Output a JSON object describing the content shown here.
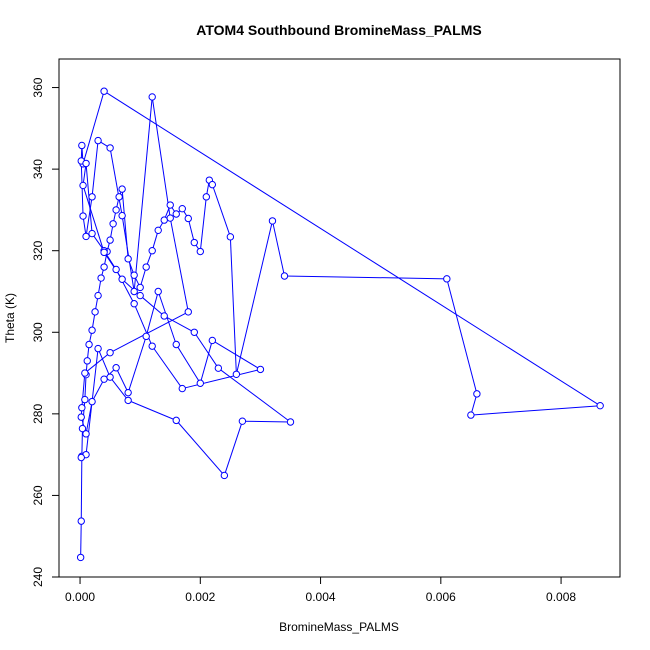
{
  "chart_data": {
    "type": "line",
    "title": "ATOM4 Southbound BromineMass_PALMS",
    "xlabel": "BromineMass_PALMS",
    "ylabel": "Theta (K)",
    "xlim": [
      -0.00035,
      0.00898
    ],
    "ylim": [
      240,
      367
    ],
    "x_ticks": [
      0.0,
      0.002,
      0.004,
      0.006,
      0.008
    ],
    "x_tick_labels": [
      "0.000",
      "0.002",
      "0.004",
      "0.006",
      "0.008"
    ],
    "y_ticks": [
      240,
      260,
      280,
      300,
      320,
      340,
      360
    ],
    "y_tick_labels": [
      "240",
      "260",
      "280",
      "300",
      "320",
      "340",
      "360"
    ],
    "grid": false,
    "marker": "open-circle",
    "series_color": "#0000ff",
    "series": [
      {
        "x": [
          1e-05,
          2e-05,
          3e-05,
          4e-05,
          8e-05,
          0.0001,
          0.00012,
          0.00015,
          0.0002,
          0.00025,
          0.0003,
          0.00035,
          0.0004,
          0.00045,
          0.0005,
          0.00055,
          0.0006,
          0.00065,
          0.0007,
          0.0008,
          0.0009,
          0.001,
          0.0011,
          0.0012,
          0.0013,
          0.0014,
          0.0015,
          0.0016,
          0.0017,
          0.0018,
          0.0019,
          0.002,
          0.0021,
          0.00215,
          0.0022,
          0.0025,
          0.0026,
          0.0032,
          0.0034,
          0.0061,
          0.0066,
          0.0065,
          0.00865,
          0.0004,
          5e-05,
          3e-05,
          2e-05,
          5e-05,
          0.0001,
          0.0002,
          0.0003,
          0.0005,
          0.0007,
          0.0009,
          0.0012,
          0.0015,
          0.0018,
          0.0005,
          8e-05,
          3e-05,
          2e-05,
          0.0001,
          0.0002,
          0.0004,
          0.0006,
          0.0008,
          0.0011,
          0.0013,
          0.0016,
          0.002,
          0.0022,
          0.003,
          0.0017,
          0.0012,
          0.0009,
          0.0006,
          0.0004,
          0.0002,
          0.0001,
          5e-05,
          0.0004,
          0.0007,
          0.001,
          0.0014,
          0.0019,
          0.0023,
          0.0035,
          0.0027,
          0.0024,
          0.0016,
          0.0008,
          0.0005,
          0.0003,
          0.0001,
          2e-05
        ],
        "y": [
          244.8,
          253.7,
          269.6,
          276.4,
          283.5,
          289.6,
          293.0,
          297.0,
          300.5,
          305.0,
          309.0,
          313.3,
          316.0,
          319.8,
          322.6,
          326.6,
          330.0,
          333.2,
          335.1,
          318.0,
          314.0,
          311.0,
          316.0,
          320.0,
          325.0,
          327.5,
          331.2,
          329.0,
          330.3,
          327.9,
          322.0,
          319.8,
          333.2,
          337.3,
          336.2,
          323.4,
          289.7,
          327.3,
          313.8,
          313.1,
          284.9,
          279.7,
          282.0,
          359.1,
          341.3,
          345.8,
          342.0,
          328.5,
          323.5,
          333.2,
          347.0,
          345.2,
          328.6,
          310.0,
          357.7,
          328.0,
          305.0,
          295.0,
          290.0,
          281.5,
          279.2,
          275.1,
          283.0,
          288.5,
          291.3,
          285.2,
          299.0,
          310.0,
          297.0,
          287.5,
          298.0,
          290.9,
          286.2,
          296.6,
          307.0,
          315.4,
          320.0,
          324.2,
          341.4,
          336.0,
          319.6,
          313.0,
          309.0,
          304.0,
          300.0,
          291.2,
          278.0,
          278.2,
          264.9,
          278.4,
          283.3,
          289.0,
          296.0,
          270.0,
          269.3
        ]
      }
    ]
  }
}
